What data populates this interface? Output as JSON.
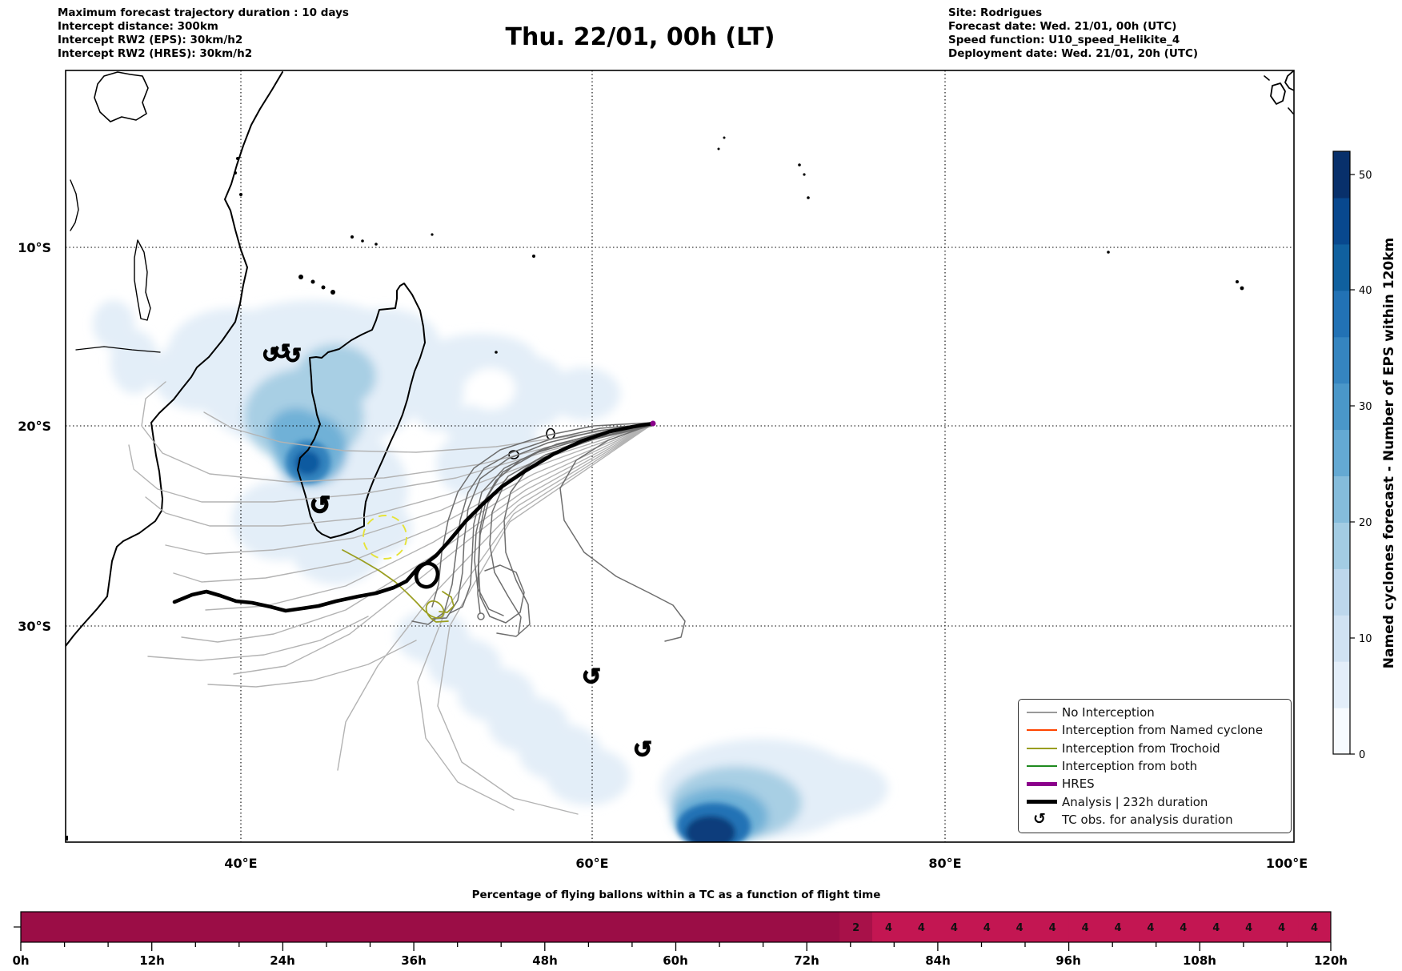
{
  "header": {
    "left_lines": [
      "Maximum forecast trajectory duration : 10 days",
      "Intercept distance: 300km",
      "Intercept RW2 (EPS):  30km/h2",
      "Intercept RW2 (HRES): 30km/h2"
    ],
    "title": "Thu. 22/01, 00h (LT)",
    "right_lines": [
      "Site: Rodrigues",
      "Forecast date: Wed. 21/01, 00h (UTC)",
      "Speed function: U10_speed_Helikite_4",
      "Deployment date: Wed. 21/01, 20h (UTC)"
    ]
  },
  "map": {
    "xtick_labels": [
      "40°E",
      "60°E",
      "80°E",
      "100°E"
    ],
    "ytick_labels": [
      "10°S",
      "20°S",
      "30°S"
    ]
  },
  "colorbar": {
    "label": "Named cyclones forecast - Number of EPS within 120km",
    "tick_labels": [
      "0",
      "10",
      "20",
      "30",
      "40",
      "50"
    ],
    "stops": [
      "#f7fbff",
      "#e3eef9",
      "#d0e2f2",
      "#bdd7ec",
      "#a3cce3",
      "#85bcdb",
      "#64a9d3",
      "#4a97c9",
      "#3585c0",
      "#2272b5",
      "#10609f",
      "#08488e",
      "#08306b"
    ]
  },
  "legend": {
    "items": [
      {
        "label": "No Interception",
        "color": "#999999",
        "thick": false
      },
      {
        "label": "Interception from Named cyclone",
        "color": "#ff4500",
        "thick": false
      },
      {
        "label": "Interception from Trochoid",
        "color": "#9a9e20",
        "thick": false
      },
      {
        "label": "Interception from both",
        "color": "#1f8a1f",
        "thick": false
      },
      {
        "label": "HRES",
        "color": "#8b008b",
        "thick": true
      },
      {
        "label": "Analysis | 232h duration",
        "color": "#000000",
        "thick": true
      },
      {
        "label": "TC obs. for analysis duration",
        "glyph": "↺"
      }
    ]
  },
  "strip": {
    "title": "Percentage of flying ballons within a TC as a function of flight time",
    "time_tick_labels": [
      "0h",
      "12h",
      "24h",
      "36h",
      "48h",
      "60h",
      "72h",
      "84h",
      "96h",
      "108h",
      "120h"
    ],
    "segments": [
      {
        "start_h": 0,
        "end_h": 75,
        "label": "",
        "color": "#9b0d46"
      },
      {
        "start_h": 75,
        "end_h": 78,
        "label": "2",
        "color": "#a81149"
      },
      {
        "start_h": 78,
        "end_h": 81,
        "label": "4",
        "color": "#c31652"
      },
      {
        "start_h": 81,
        "end_h": 84,
        "label": "4",
        "color": "#c31652"
      },
      {
        "start_h": 84,
        "end_h": 87,
        "label": "4",
        "color": "#c31652"
      },
      {
        "start_h": 87,
        "end_h": 90,
        "label": "4",
        "color": "#c31652"
      },
      {
        "start_h": 90,
        "end_h": 93,
        "label": "4",
        "color": "#c31652"
      },
      {
        "start_h": 93,
        "end_h": 96,
        "label": "4",
        "color": "#c31652"
      },
      {
        "start_h": 96,
        "end_h": 99,
        "label": "4",
        "color": "#c31652"
      },
      {
        "start_h": 99,
        "end_h": 102,
        "label": "4",
        "color": "#c31652"
      },
      {
        "start_h": 102,
        "end_h": 105,
        "label": "4",
        "color": "#c31652"
      },
      {
        "start_h": 105,
        "end_h": 108,
        "label": "4",
        "color": "#c31652"
      },
      {
        "start_h": 108,
        "end_h": 111,
        "label": "4",
        "color": "#c31652"
      },
      {
        "start_h": 111,
        "end_h": 114,
        "label": "4",
        "color": "#c31652"
      },
      {
        "start_h": 114,
        "end_h": 117,
        "label": "4",
        "color": "#c31652"
      },
      {
        "start_h": 117,
        "end_h": 120,
        "label": "4",
        "color": "#c31652"
      }
    ]
  },
  "chart_data": [
    {
      "type": "bar",
      "title": "Percentage of flying ballons within a TC as a function of flight time",
      "xlabel": "flight time",
      "x_ticks": [
        "0h",
        "12h",
        "24h",
        "36h",
        "48h",
        "60h",
        "72h",
        "84h",
        "96h",
        "108h",
        "120h"
      ],
      "segments": [
        {
          "from_h": 0,
          "to_h": 75,
          "value": 0
        },
        {
          "from_h": 75,
          "to_h": 78,
          "value": 2
        },
        {
          "from_h": 78,
          "to_h": 120,
          "value": 4,
          "step_h": 3,
          "per_step_label": "4",
          "steps": 14
        }
      ],
      "xlim_h": [
        0,
        120
      ]
    },
    {
      "type": "heatmap",
      "title": "Named cyclones forecast - Number of EPS within 120km",
      "colorbar_ticks": [
        0,
        10,
        20,
        30,
        40,
        50
      ],
      "colorbar_range": [
        0,
        52
      ],
      "map_extent": {
        "lon": [
          "30°E",
          "100°E"
        ],
        "lat": [
          "0°",
          "40°S"
        ]
      },
      "grid": true,
      "legend_position": "lower right"
    }
  ]
}
